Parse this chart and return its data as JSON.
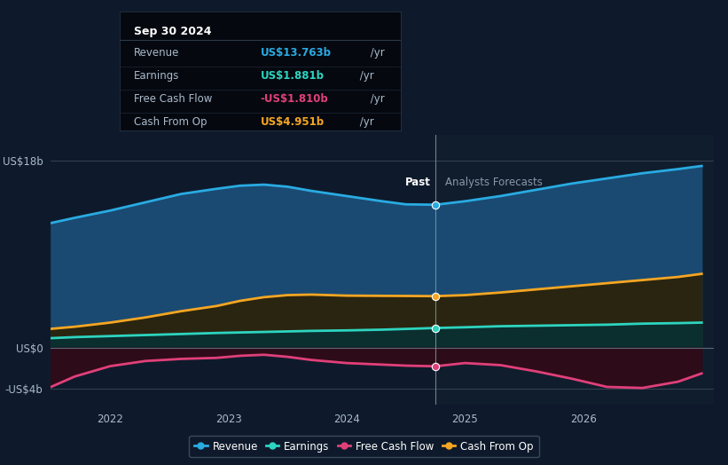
{
  "background_color": "#0e1a2b",
  "plot_bg_color": "#0e1a2b",
  "divider_x": 2024.75,
  "tooltip_date": "Sep 30 2024",
  "tooltip_rows": [
    {
      "label": "Revenue",
      "value": "US$13.763b",
      "suffix": " /yr",
      "color": "#29abe2"
    },
    {
      "label": "Earnings",
      "value": "US$1.881b",
      "suffix": " /yr",
      "color": "#2dd4bf"
    },
    {
      "label": "Free Cash Flow",
      "value": "-US$1.810b",
      "suffix": " /yr",
      "color": "#e0407a"
    },
    {
      "label": "Cash From Op",
      "value": "US$4.951b",
      "suffix": " /yr",
      "color": "#f5a623"
    }
  ],
  "x_ticks": [
    2022,
    2023,
    2024,
    2025,
    2026
  ],
  "xlim": [
    2021.5,
    2027.1
  ],
  "ylim": [
    -5.5,
    20.5
  ],
  "y_labels": [
    18,
    0,
    -4
  ],
  "y_label_texts": [
    "US$18b",
    "US$0",
    "-US$4b"
  ],
  "revenue_color": "#29abe2",
  "earnings_color": "#2dd4bf",
  "fcf_color": "#e0407a",
  "cashfromop_color": "#f5a623",
  "revenue_x": [
    2021.5,
    2021.7,
    2022.0,
    2022.3,
    2022.6,
    2022.9,
    2023.1,
    2023.3,
    2023.5,
    2023.7,
    2024.0,
    2024.3,
    2024.5,
    2024.75,
    2025.0,
    2025.3,
    2025.6,
    2025.9,
    2026.2,
    2026.5,
    2026.8,
    2027.0
  ],
  "revenue_y": [
    12.0,
    12.5,
    13.2,
    14.0,
    14.8,
    15.3,
    15.6,
    15.7,
    15.5,
    15.1,
    14.6,
    14.1,
    13.8,
    13.763,
    14.1,
    14.6,
    15.2,
    15.8,
    16.3,
    16.8,
    17.2,
    17.5
  ],
  "cashfromop_x": [
    2021.5,
    2021.7,
    2022.0,
    2022.3,
    2022.6,
    2022.9,
    2023.1,
    2023.3,
    2023.5,
    2023.7,
    2024.0,
    2024.3,
    2024.5,
    2024.75,
    2025.0,
    2025.3,
    2025.6,
    2025.9,
    2026.2,
    2026.5,
    2026.8,
    2027.0
  ],
  "cashfromop_y": [
    1.8,
    2.0,
    2.4,
    2.9,
    3.5,
    4.0,
    4.5,
    4.85,
    5.05,
    5.1,
    5.0,
    4.98,
    4.97,
    4.951,
    5.05,
    5.3,
    5.6,
    5.9,
    6.2,
    6.5,
    6.8,
    7.1
  ],
  "earnings_x": [
    2021.5,
    2021.7,
    2022.0,
    2022.3,
    2022.6,
    2022.9,
    2023.1,
    2023.3,
    2023.5,
    2023.7,
    2024.0,
    2024.3,
    2024.5,
    2024.75,
    2025.0,
    2025.3,
    2025.6,
    2025.9,
    2026.2,
    2026.5,
    2026.8,
    2027.0
  ],
  "earnings_y": [
    0.9,
    1.0,
    1.1,
    1.2,
    1.3,
    1.4,
    1.45,
    1.5,
    1.55,
    1.6,
    1.65,
    1.72,
    1.79,
    1.881,
    1.95,
    2.05,
    2.1,
    2.15,
    2.2,
    2.3,
    2.35,
    2.4
  ],
  "fcf_x": [
    2021.5,
    2021.7,
    2022.0,
    2022.3,
    2022.6,
    2022.9,
    2023.1,
    2023.3,
    2023.5,
    2023.7,
    2024.0,
    2024.3,
    2024.5,
    2024.75,
    2025.0,
    2025.3,
    2025.6,
    2025.9,
    2026.2,
    2026.5,
    2026.8,
    2027.0
  ],
  "fcf_y": [
    -3.8,
    -2.8,
    -1.8,
    -1.3,
    -1.1,
    -1.0,
    -0.8,
    -0.7,
    -0.9,
    -1.2,
    -1.5,
    -1.65,
    -1.75,
    -1.81,
    -1.5,
    -1.7,
    -2.3,
    -3.0,
    -3.8,
    -3.9,
    -3.3,
    -2.5
  ],
  "legend_items": [
    {
      "label": "Revenue",
      "color": "#29abe2"
    },
    {
      "label": "Earnings",
      "color": "#2dd4bf"
    },
    {
      "label": "Free Cash Flow",
      "color": "#e0407a"
    },
    {
      "label": "Cash From Op",
      "color": "#f5a623"
    }
  ]
}
